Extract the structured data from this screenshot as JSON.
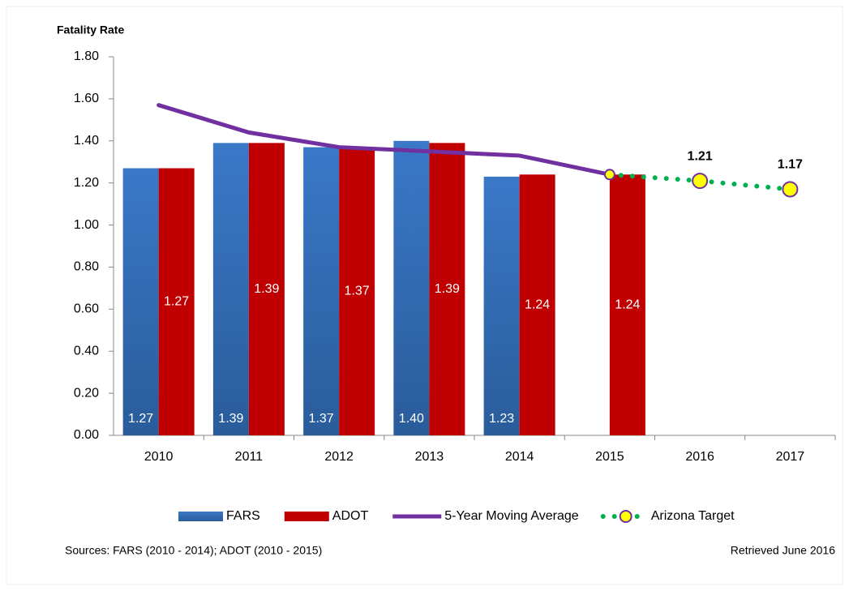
{
  "chart_data": {
    "type": "bar",
    "y_axis_title": "Fatality Rate",
    "categories": [
      "2010",
      "2011",
      "2012",
      "2013",
      "2014",
      "2015",
      "2016",
      "2017"
    ],
    "series": [
      {
        "name": "FARS",
        "type": "bar",
        "color": "#3a78c8",
        "values": [
          1.27,
          1.39,
          1.37,
          1.4,
          1.23,
          null,
          null,
          null
        ],
        "value_labels": [
          "1.27",
          "1.39",
          "1.37",
          "1.40",
          "1.23",
          null,
          null,
          null
        ]
      },
      {
        "name": "ADOT",
        "type": "bar",
        "color": "#c00000",
        "values": [
          1.27,
          1.39,
          1.37,
          1.39,
          1.24,
          1.24,
          null,
          null
        ],
        "value_labels": [
          "1.27",
          "1.39",
          "1.37",
          "1.39",
          "1.24",
          "1.24",
          null,
          null
        ]
      },
      {
        "name": "5-Year Moving Average",
        "type": "line",
        "color": "#7030a0",
        "values": [
          1.57,
          1.44,
          1.37,
          1.35,
          1.33,
          1.24,
          null,
          null
        ]
      },
      {
        "name": "Arizona Target",
        "type": "dotted",
        "color": "#00b050",
        "marker_color": "#ffff00",
        "values": [
          null,
          null,
          null,
          null,
          null,
          1.24,
          1.21,
          1.17
        ],
        "value_labels": [
          null,
          null,
          null,
          null,
          null,
          null,
          "1.21",
          "1.17"
        ]
      }
    ],
    "ylim": [
      0,
      1.8
    ],
    "yticks": [
      {
        "value": 0,
        "label": "0.00"
      },
      {
        "value": 0.2,
        "label": "0.20"
      },
      {
        "value": 0.4,
        "label": "0.40"
      },
      {
        "value": 0.6,
        "label": "0.60"
      },
      {
        "value": 0.8,
        "label": "0.80"
      },
      {
        "value": 1.0,
        "label": "1.00"
      },
      {
        "value": 1.2,
        "label": "1.20"
      },
      {
        "value": 1.4,
        "label": "1.40"
      },
      {
        "value": 1.6,
        "label": "1.60"
      },
      {
        "value": 1.8,
        "label": "1.80"
      }
    ],
    "source": "Sources: FARS (2010 - 2014); ADOT (2010 - 2015)",
    "retrieved": "Retrieved June 2016"
  }
}
